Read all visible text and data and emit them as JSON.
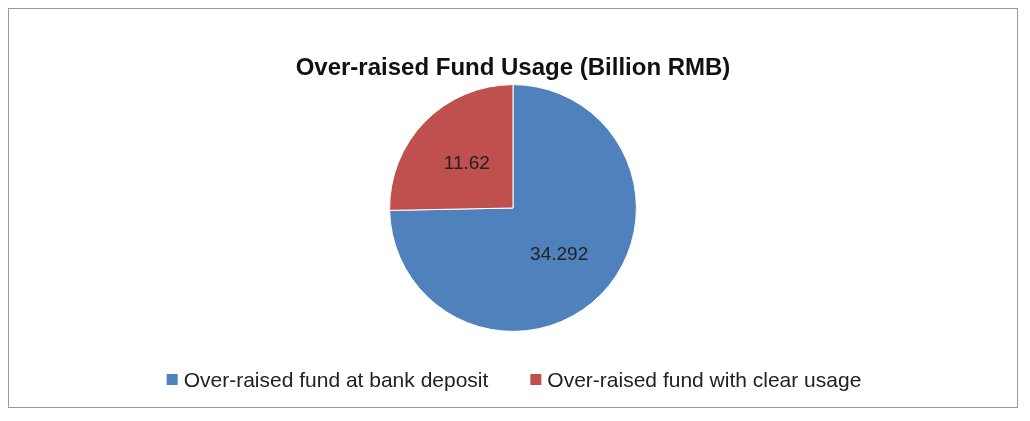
{
  "chart_data": {
    "type": "pie",
    "title": "Over-raised Fund Usage (Billion RMB)",
    "categories": [
      "Over-raised fund at bank deposit",
      "Over-raised fund with clear usage"
    ],
    "values": [
      34.292,
      11.62
    ],
    "colors": [
      "#4f81bd",
      "#c0504d"
    ],
    "data_labels": true,
    "legend": "bottom"
  }
}
